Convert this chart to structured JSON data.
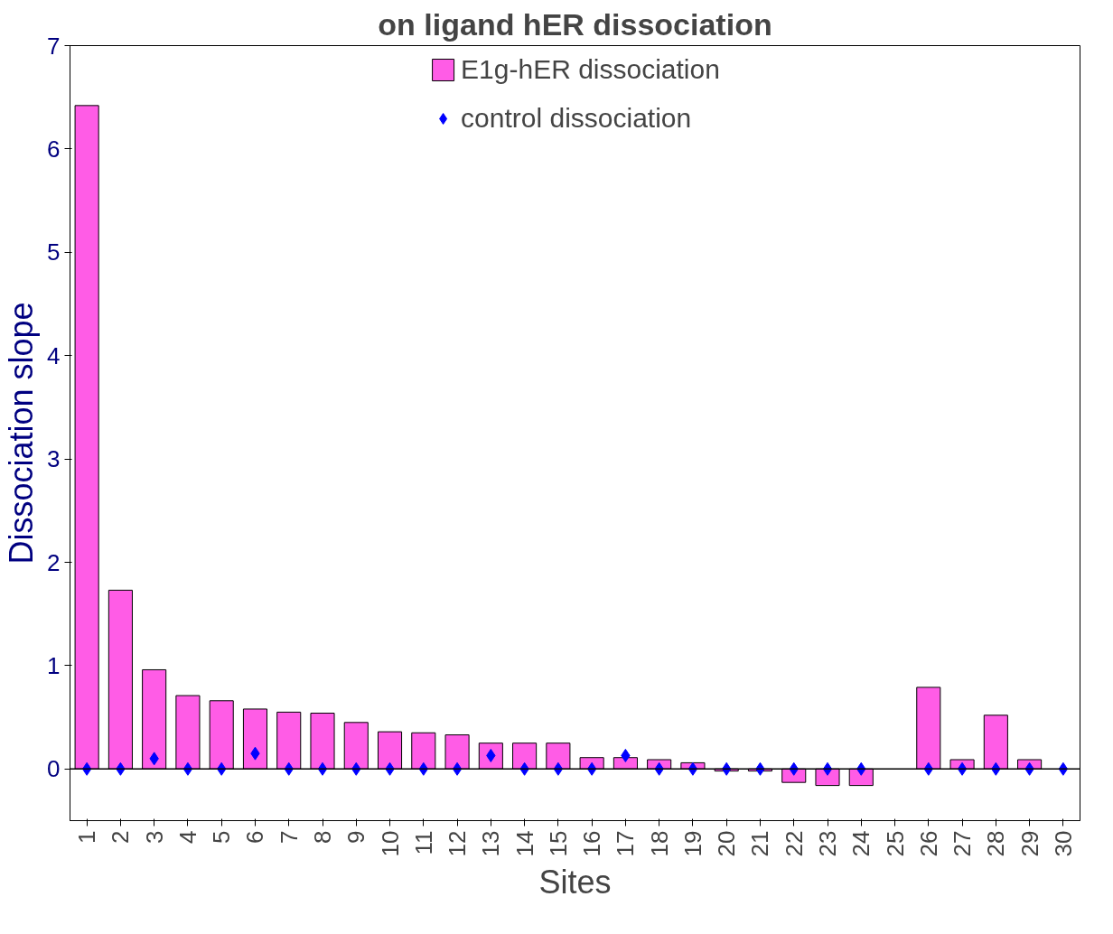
{
  "chart_data": {
    "type": "bar",
    "title": "on ligand hER dissociation",
    "xlabel": "Sites",
    "ylabel": "Dissociation slope",
    "categories": [
      "1",
      "2",
      "3",
      "4",
      "5",
      "6",
      "7",
      "8",
      "9",
      "10",
      "11",
      "12",
      "13",
      "14",
      "15",
      "16",
      "17",
      "18",
      "19",
      "20",
      "21",
      "22",
      "23",
      "24",
      "25",
      "26",
      "27",
      "28",
      "29",
      "30"
    ],
    "series": [
      {
        "name": "E1g-hER dissociation",
        "color": "#ff5ce6",
        "values": [
          6.42,
          1.73,
          0.96,
          0.71,
          0.66,
          0.58,
          0.55,
          0.54,
          0.45,
          0.36,
          0.35,
          0.33,
          0.25,
          0.25,
          0.25,
          0.11,
          0.11,
          0.09,
          0.06,
          -0.02,
          -0.02,
          -0.13,
          -0.16,
          -0.16,
          null,
          0.79,
          0.09,
          0.52,
          0.09,
          null
        ]
      },
      {
        "name": "control dissociation",
        "type": "scatter",
        "color": "#0000ff",
        "marker": "diamond",
        "values": [
          0,
          0,
          0.1,
          0,
          0,
          0.15,
          0,
          0,
          0,
          0,
          0,
          0,
          0.13,
          0,
          0,
          0,
          0.13,
          0,
          0,
          0,
          0,
          0,
          0,
          0,
          null,
          0,
          0,
          0,
          0,
          0
        ]
      }
    ],
    "ylim": [
      -0.5,
      7
    ],
    "yticks": [
      0,
      1,
      2,
      3,
      4,
      5,
      6,
      7
    ],
    "grid": false,
    "legend": "top",
    "ref_lines": [
      {
        "axis": "y",
        "value": 0,
        "color": "#000000"
      }
    ]
  }
}
